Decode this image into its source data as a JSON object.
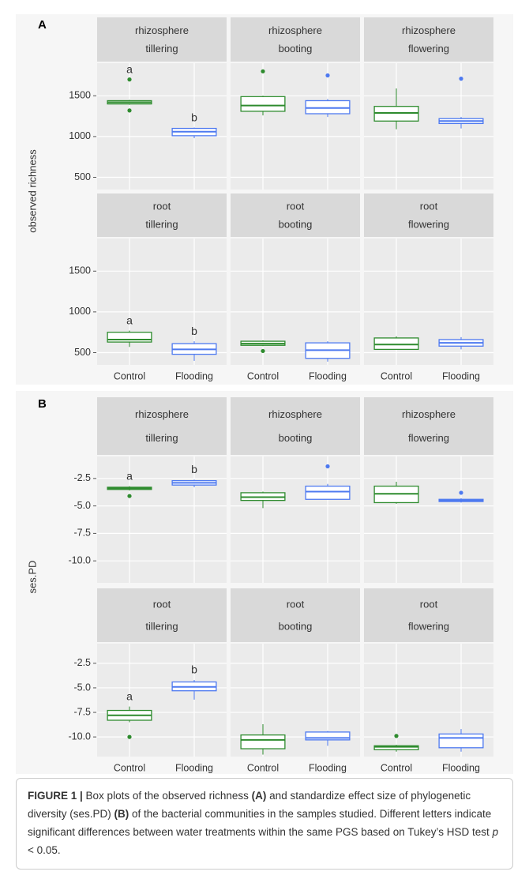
{
  "chart_data": [
    {
      "type": "box",
      "panel_label": "A",
      "ylabel": "observed richness",
      "categories": [
        "Control",
        "Flooding"
      ],
      "colors": [
        "#2e8b2e",
        "#4d79f0"
      ],
      "ylim": [
        350,
        1900
      ],
      "yticks": [
        500,
        1000,
        1500
      ],
      "grid": true,
      "facets": [
        {
          "strip": [
            "rhizosphere",
            "tillering"
          ],
          "boxes": [
            {
              "min": 1390,
              "q1": 1400,
              "median": 1420,
              "q3": 1440,
              "max": 1450,
              "outliers": [
                1700,
                1320
              ],
              "letter": "a"
            },
            {
              "min": 980,
              "q1": 1010,
              "median": 1060,
              "q3": 1100,
              "max": 1110,
              "outliers": [],
              "letter": "b"
            }
          ]
        },
        {
          "strip": [
            "rhizosphere",
            "booting"
          ],
          "boxes": [
            {
              "min": 1260,
              "q1": 1310,
              "median": 1380,
              "q3": 1490,
              "max": 1500,
              "outliers": [
                1800
              ]
            },
            {
              "min": 1240,
              "q1": 1280,
              "median": 1350,
              "q3": 1440,
              "max": 1460,
              "outliers": [
                1750
              ]
            }
          ]
        },
        {
          "strip": [
            "rhizosphere",
            "flowering"
          ],
          "boxes": [
            {
              "min": 1090,
              "q1": 1190,
              "median": 1290,
              "q3": 1370,
              "max": 1590,
              "outliers": []
            },
            {
              "min": 1100,
              "q1": 1160,
              "median": 1190,
              "q3": 1220,
              "max": 1240,
              "outliers": [
                1710
              ]
            }
          ]
        },
        {
          "strip": [
            "root",
            "tillering"
          ],
          "boxes": [
            {
              "min": 570,
              "q1": 630,
              "median": 660,
              "q3": 750,
              "max": 770,
              "outliers": [],
              "letter": "a"
            },
            {
              "min": 400,
              "q1": 480,
              "median": 540,
              "q3": 610,
              "max": 640,
              "outliers": [],
              "letter": "b"
            }
          ]
        },
        {
          "strip": [
            "root",
            "booting"
          ],
          "boxes": [
            {
              "min": 580,
              "q1": 590,
              "median": 610,
              "q3": 640,
              "max": 650,
              "outliers": [
                520
              ]
            },
            {
              "min": 390,
              "q1": 430,
              "median": 530,
              "q3": 620,
              "max": 640,
              "outliers": []
            }
          ]
        },
        {
          "strip": [
            "root",
            "flowering"
          ],
          "boxes": [
            {
              "min": 540,
              "q1": 540,
              "median": 600,
              "q3": 680,
              "max": 700,
              "outliers": []
            },
            {
              "min": 540,
              "q1": 580,
              "median": 620,
              "q3": 660,
              "max": 690,
              "outliers": []
            }
          ]
        }
      ]
    },
    {
      "type": "box",
      "panel_label": "B",
      "ylabel": "ses.PD",
      "categories": [
        "Control",
        "Flooding"
      ],
      "colors": [
        "#2e8b2e",
        "#4d79f0"
      ],
      "ylim": [
        -12,
        -0.5
      ],
      "yticks": [
        -2.5,
        {
          "value": -5,
          "label": "-5.0"
        },
        -7.5,
        {
          "value": -10,
          "label": "-10.0"
        }
      ],
      "grid": true,
      "facets": [
        {
          "strip": [
            "rhizosphere",
            "tillering"
          ],
          "boxes": [
            {
              "min": -3.6,
              "q1": -3.5,
              "median": -3.4,
              "q3": -3.3,
              "max": -3.2,
              "outliers": [
                -4.1
              ],
              "letter": "a"
            },
            {
              "min": -3.3,
              "q1": -3.1,
              "median": -2.9,
              "q3": -2.7,
              "max": -2.6,
              "outliers": [],
              "letter": "b"
            }
          ]
        },
        {
          "strip": [
            "rhizosphere",
            "booting"
          ],
          "boxes": [
            {
              "min": -5.2,
              "q1": -4.5,
              "median": -4.2,
              "q3": -3.8,
              "max": -3.7,
              "outliers": []
            },
            {
              "min": -4.4,
              "q1": -4.4,
              "median": -3.7,
              "q3": -3.2,
              "max": -3.0,
              "outliers": [
                -1.4
              ]
            }
          ]
        },
        {
          "strip": [
            "rhizosphere",
            "flowering"
          ],
          "boxes": [
            {
              "min": -4.8,
              "q1": -4.7,
              "median": -3.9,
              "q3": -3.2,
              "max": -2.8,
              "outliers": []
            },
            {
              "min": -4.7,
              "q1": -4.6,
              "median": -4.5,
              "q3": -4.4,
              "max": -4.3,
              "outliers": [
                -3.8
              ]
            }
          ]
        },
        {
          "strip": [
            "root",
            "tillering"
          ],
          "boxes": [
            {
              "min": -8.5,
              "q1": -8.3,
              "median": -7.8,
              "q3": -7.3,
              "max": -6.9,
              "outliers": [
                -10
              ],
              "letter": "a"
            },
            {
              "min": -6.2,
              "q1": -5.3,
              "median": -4.9,
              "q3": -4.4,
              "max": -4.2,
              "outliers": [],
              "letter": "b"
            }
          ]
        },
        {
          "strip": [
            "root",
            "booting"
          ],
          "boxes": [
            {
              "min": -11.8,
              "q1": -11.2,
              "median": -10.3,
              "q3": -9.8,
              "max": -8.7,
              "outliers": []
            },
            {
              "min": -10.9,
              "q1": -10.3,
              "median": -10.1,
              "q3": -9.5,
              "max": -9.4,
              "outliers": []
            }
          ]
        },
        {
          "strip": [
            "root",
            "flowering"
          ],
          "boxes": [
            {
              "min": -11.5,
              "q1": -11.3,
              "median": -11.0,
              "q3": -10.9,
              "max": -10.8,
              "outliers": [
                -9.9
              ]
            },
            {
              "min": -11.5,
              "q1": -11.1,
              "median": -10.1,
              "q3": -9.7,
              "max": -9.2,
              "outliers": []
            }
          ]
        }
      ]
    }
  ],
  "caption": {
    "parts": [
      "FIGURE 1 |",
      " Box plots of the observed richness ",
      "(A)",
      " and standardize effect size of phylogenetic diversity (ses.PD) ",
      "(B)",
      " of the bacterial communities in the samples studied. Different letters indicate significant differences between water treatments within the same PGS based on Tukey’s HSD test ",
      "p",
      " < 0.05."
    ],
    "bold": [
      0,
      2,
      4
    ],
    "italic": [
      6
    ]
  }
}
